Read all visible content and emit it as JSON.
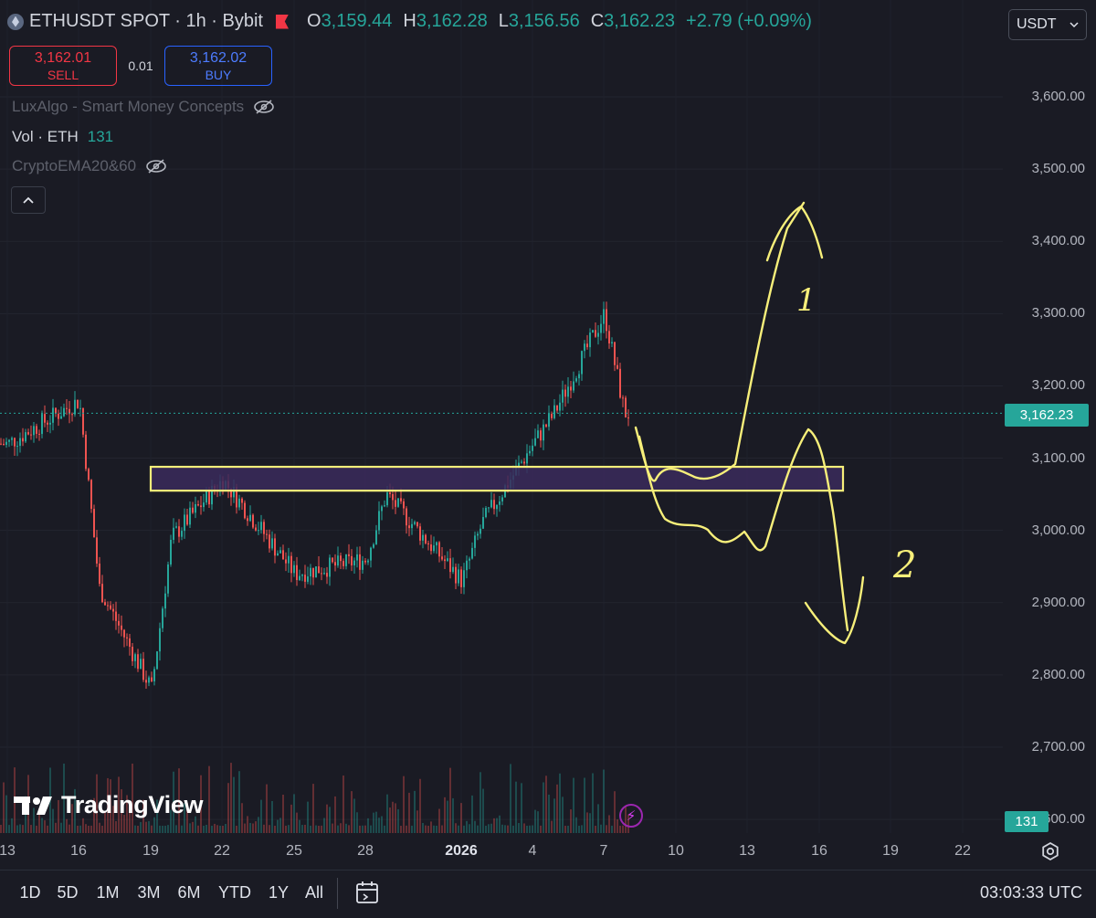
{
  "header": {
    "symbol": "ETHUSDT SPOT · 1h · Bybit",
    "ohlc": [
      {
        "k": "O",
        "v": "3,159.44"
      },
      {
        "k": "H",
        "v": "3,162.28"
      },
      {
        "k": "L",
        "v": "3,156.56"
      },
      {
        "k": "C",
        "v": "3,162.23"
      }
    ],
    "change": "+2.79 (+0.09%)"
  },
  "trade": {
    "sell_price": "3,162.01",
    "sell_label": "SELL",
    "spread": "0.01",
    "buy_price": "3,162.02",
    "buy_label": "BUY"
  },
  "indicators": {
    "luxalgo": "LuxAlgo - Smart Money Concepts",
    "vol_name": "Vol · ETH",
    "vol_value": "131",
    "ema": "CryptoEMA20&60"
  },
  "currency_button": "USDT",
  "price_axis": [
    "3,600.00",
    "3,500.00",
    "3,400.00",
    "3,300.00",
    "3,200.00",
    "3,100.00",
    "3,000.00",
    "2,900.00",
    "2,800.00",
    "2,700.00",
    "2,600.00"
  ],
  "last_price": "3,162.23",
  "last_volume": "131",
  "time_axis": [
    "13",
    "16",
    "19",
    "22",
    "25",
    "28",
    "2026",
    "4",
    "7",
    "10",
    "13",
    "16",
    "19",
    "22"
  ],
  "footer": {
    "ranges": [
      "1D",
      "5D",
      "1M",
      "3M",
      "6M",
      "YTD",
      "1Y",
      "All"
    ],
    "clock": "03:03:33 UTC"
  },
  "logo_text": "TradingView",
  "annotations": [
    "1",
    "2"
  ],
  "colors": {
    "background": "#1a1b24",
    "up": "#26a69a",
    "down": "#ef5350",
    "drawing": "#f7ef7a",
    "zone_fill": "#3b2a5c"
  },
  "chart_data": {
    "type": "candlestick",
    "ylim": [
      2600,
      3650
    ],
    "x_ticks": [
      "13",
      "16",
      "19",
      "22",
      "25",
      "28",
      "2026",
      "4",
      "7",
      "10",
      "13",
      "16",
      "19",
      "22"
    ],
    "key_points": [
      {
        "x": "13",
        "y": 3120
      },
      {
        "x": "16",
        "y": 3180
      },
      {
        "x": "16",
        "y": 2920
      },
      {
        "x": "19",
        "y": 2780
      },
      {
        "x": "19",
        "y": 2990
      },
      {
        "x": "22",
        "y": 3070
      },
      {
        "x": "25",
        "y": 2940
      },
      {
        "x": "28",
        "y": 2960
      },
      {
        "x": "28",
        "y": 3050
      },
      {
        "x": "2026",
        "y": 2930
      },
      {
        "x": "2026",
        "y": 3010
      },
      {
        "x": "4",
        "y": 3120
      },
      {
        "x": "4",
        "y": 3160
      },
      {
        "x": "7",
        "y": 3300
      },
      {
        "x": "7",
        "y": 3162
      }
    ],
    "last_close": 3162.23,
    "zone": [
      3055,
      3088
    ],
    "projections": [
      {
        "label": "1",
        "path": [
          {
            "x": "7",
            "y": 3150
          },
          {
            "x": "10",
            "y": 3070
          },
          {
            "x": "13",
            "y": 3080
          },
          {
            "x": "16",
            "y": 3450
          }
        ]
      },
      {
        "label": "2",
        "path": [
          {
            "x": "7",
            "y": 3150
          },
          {
            "x": "10",
            "y": 3010
          },
          {
            "x": "13",
            "y": 2990
          },
          {
            "x": "16",
            "y": 3140
          },
          {
            "x": "16",
            "y": 2860
          }
        ]
      }
    ]
  }
}
